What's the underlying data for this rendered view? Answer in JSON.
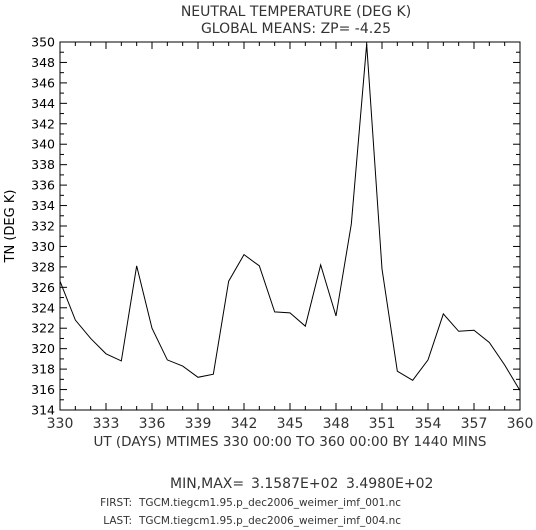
{
  "chart_data": {
    "type": "line",
    "title": "NEUTRAL TEMPERATURE (DEG K)",
    "subtitle": "GLOBAL MEANS: ZP= -4.25",
    "xlabel": "UT (DAYS) MTIMES 330 00:00 TO 360 00:00 BY 1440 MINS",
    "ylabel": "TN (DEG K)",
    "xlim": [
      330,
      360
    ],
    "ylim": [
      314,
      350
    ],
    "x_ticks": [
      330,
      333,
      336,
      339,
      342,
      345,
      348,
      351,
      354,
      357,
      360
    ],
    "y_ticks": [
      314,
      316,
      318,
      320,
      322,
      324,
      326,
      328,
      330,
      332,
      334,
      336,
      338,
      340,
      342,
      344,
      346,
      348,
      350
    ],
    "grid": false,
    "series": [
      {
        "x": [
          330,
          331,
          332,
          333,
          334,
          335,
          336,
          337,
          338,
          339,
          340,
          341,
          342,
          343,
          344,
          345,
          346,
          347,
          348,
          349,
          350,
          351,
          352,
          353,
          354,
          355,
          356,
          357,
          358,
          359,
          360
        ],
        "values": [
          326.6,
          322.8,
          321.0,
          319.5,
          318.8,
          328.1,
          322.0,
          318.9,
          318.3,
          317.2,
          317.5,
          326.6,
          329.2,
          328.1,
          323.6,
          323.5,
          322.2,
          328.2,
          323.2,
          332.2,
          349.8,
          327.8,
          317.8,
          316.9,
          318.9,
          323.4,
          321.7,
          321.8,
          320.6,
          318.4,
          315.9
        ]
      }
    ],
    "stats": {
      "minmax_label": "MIN,MAX=",
      "min": "3.1587E+02",
      "max": "3.4980E+02"
    },
    "files": {
      "first_label": "FIRST:",
      "first": "TGCM.tiegcm1.95.p_dec2006_weimer_imf_001.nc",
      "last_label": "LAST:",
      "last": "TGCM.tiegcm1.95.p_dec2006_weimer_imf_004.nc"
    }
  }
}
